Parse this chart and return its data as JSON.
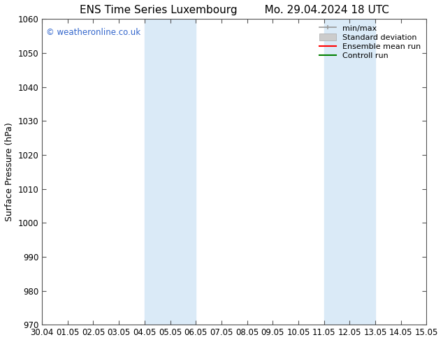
{
  "title_left": "ENS Time Series Luxembourg",
  "title_right": "Mo. 29.04.2024 18 UTC",
  "ylabel": "Surface Pressure (hPa)",
  "ylim": [
    970,
    1060
  ],
  "yticks": [
    970,
    980,
    990,
    1000,
    1010,
    1020,
    1030,
    1040,
    1050,
    1060
  ],
  "xtick_labels": [
    "30.04",
    "01.05",
    "02.05",
    "03.05",
    "04.05",
    "05.05",
    "06.05",
    "07.05",
    "08.05",
    "09.05",
    "10.05",
    "11.05",
    "12.05",
    "13.05",
    "14.05",
    "15.05"
  ],
  "shaded_bands": [
    {
      "xstart": 4,
      "xend": 6
    },
    {
      "xstart": 11,
      "xend": 13
    }
  ],
  "shaded_color": "#daeaf7",
  "watermark_text": "© weatheronline.co.uk",
  "watermark_color": "#3366cc",
  "background_color": "#ffffff",
  "spine_color": "#555555",
  "tick_label_fontsize": 8.5,
  "axis_label_fontsize": 9,
  "title_fontsize": 11,
  "legend_fontsize": 8,
  "min_max_color": "#999999",
  "std_dev_color": "#cccccc",
  "std_dev_edge": "#aaaaaa",
  "ensemble_color": "red",
  "control_color": "green"
}
